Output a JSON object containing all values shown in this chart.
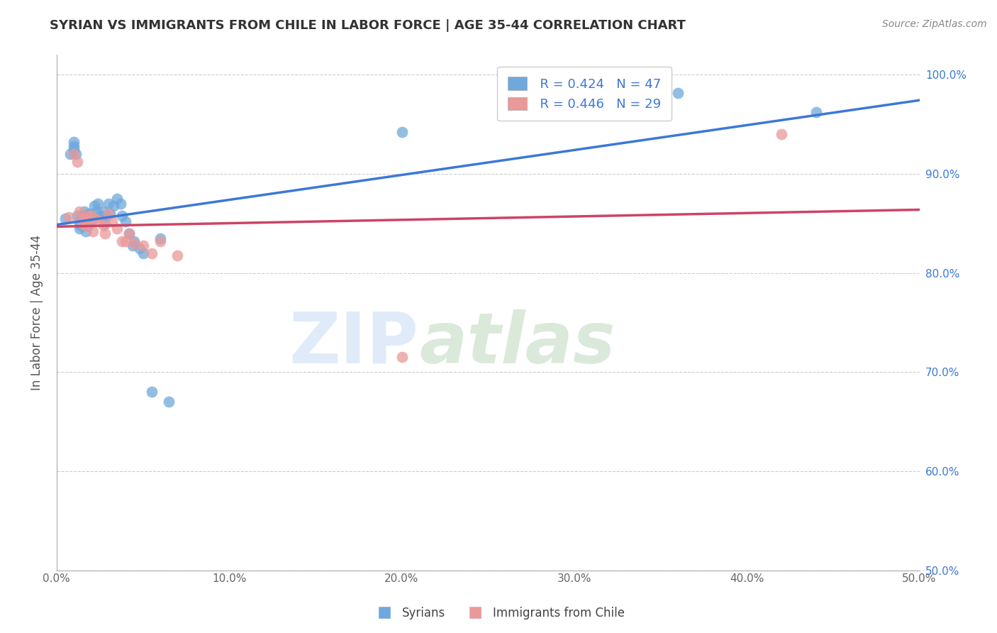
{
  "title": "SYRIAN VS IMMIGRANTS FROM CHILE IN LABOR FORCE | AGE 35-44 CORRELATION CHART",
  "source": "Source: ZipAtlas.com",
  "ylabel": "In Labor Force | Age 35-44",
  "xlim": [
    0.0,
    0.5
  ],
  "ylim": [
    0.5,
    1.02
  ],
  "xtick_vals": [
    0.0,
    0.1,
    0.2,
    0.3,
    0.4,
    0.5
  ],
  "xtick_labels": [
    "0.0%",
    "10.0%",
    "20.0%",
    "30.0%",
    "40.0%",
    "50.0%"
  ],
  "ytick_vals": [
    0.5,
    0.6,
    0.7,
    0.8,
    0.9,
    1.0
  ],
  "ytick_labels": [
    "50.0%",
    "60.0%",
    "70.0%",
    "80.0%",
    "90.0%",
    "100.0%"
  ],
  "blue_color": "#6fa8dc",
  "pink_color": "#ea9999",
  "blue_line_color": "#3c78d8",
  "pink_line_color": "#cc4466",
  "legend_R_blue": "R = 0.424",
  "legend_N_blue": "N = 47",
  "legend_R_pink": "R = 0.446",
  "legend_N_pink": "N = 29",
  "blue_x": [
    0.005,
    0.008,
    0.01,
    0.01,
    0.01,
    0.011,
    0.012,
    0.013,
    0.013,
    0.014,
    0.014,
    0.015,
    0.015,
    0.016,
    0.016,
    0.017,
    0.018,
    0.018,
    0.019,
    0.019,
    0.02,
    0.021,
    0.022,
    0.023,
    0.024,
    0.025,
    0.027,
    0.028,
    0.029,
    0.03,
    0.031,
    0.033,
    0.035,
    0.037,
    0.038,
    0.04,
    0.042,
    0.044,
    0.045,
    0.048,
    0.05,
    0.055,
    0.06,
    0.065,
    0.2,
    0.36,
    0.44
  ],
  "blue_y": [
    0.855,
    0.92,
    0.928,
    0.932,
    0.925,
    0.92,
    0.858,
    0.85,
    0.845,
    0.855,
    0.848,
    0.856,
    0.85,
    0.862,
    0.858,
    0.842,
    0.856,
    0.848,
    0.86,
    0.85,
    0.858,
    0.855,
    0.868,
    0.862,
    0.87,
    0.858,
    0.862,
    0.85,
    0.858,
    0.87,
    0.86,
    0.868,
    0.875,
    0.87,
    0.858,
    0.852,
    0.84,
    0.828,
    0.832,
    0.825,
    0.82,
    0.68,
    0.835,
    0.67,
    0.942,
    0.982,
    0.962
  ],
  "pink_x": [
    0.007,
    0.01,
    0.012,
    0.013,
    0.014,
    0.015,
    0.016,
    0.017,
    0.018,
    0.019,
    0.02,
    0.021,
    0.022,
    0.025,
    0.027,
    0.028,
    0.03,
    0.032,
    0.035,
    0.038,
    0.04,
    0.042,
    0.045,
    0.05,
    0.055,
    0.06,
    0.07,
    0.2,
    0.42
  ],
  "pink_y": [
    0.856,
    0.92,
    0.912,
    0.862,
    0.855,
    0.85,
    0.855,
    0.848,
    0.858,
    0.85,
    0.858,
    0.842,
    0.855,
    0.852,
    0.848,
    0.84,
    0.86,
    0.852,
    0.845,
    0.832,
    0.832,
    0.84,
    0.83,
    0.828,
    0.82,
    0.832,
    0.818,
    0.715,
    0.94
  ]
}
